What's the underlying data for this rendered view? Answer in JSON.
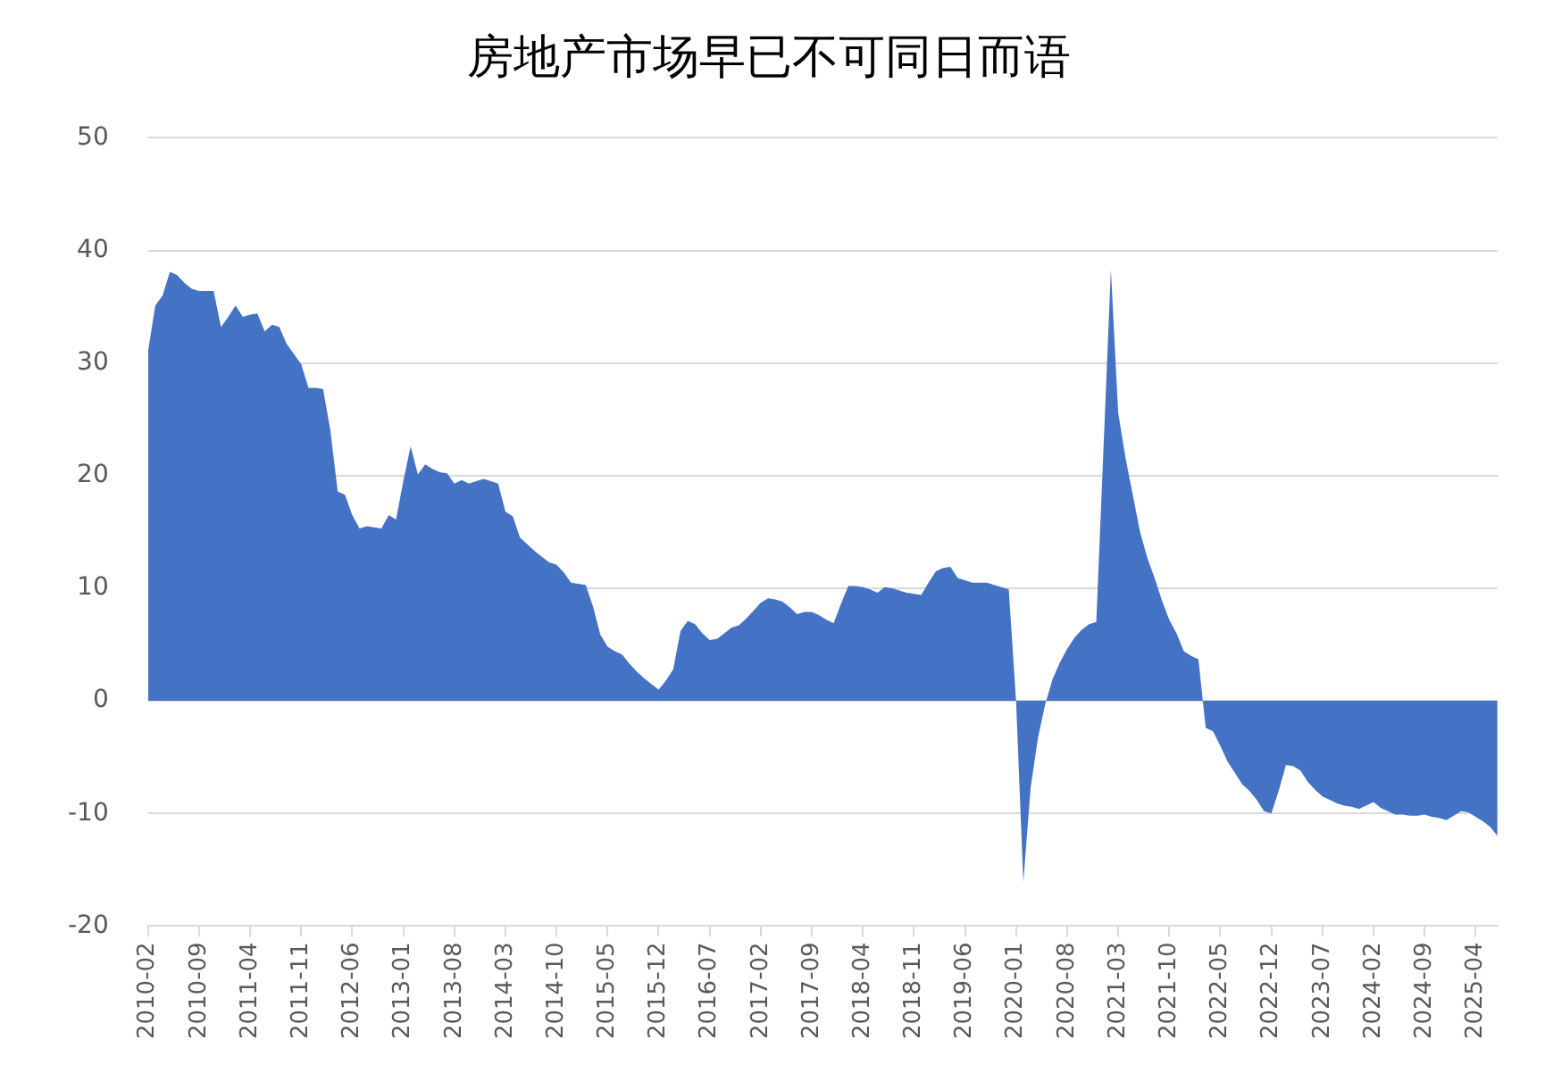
{
  "chart_data": {
    "type": "area",
    "title": "房地产市场早已不可同日而语",
    "categories": [
      "2010-02",
      null,
      null,
      null,
      null,
      null,
      null,
      "2010-09",
      null,
      null,
      null,
      null,
      null,
      null,
      "2011-04",
      null,
      null,
      null,
      null,
      null,
      null,
      "2011-11",
      null,
      null,
      null,
      null,
      null,
      null,
      "2012-06",
      null,
      null,
      null,
      null,
      null,
      null,
      "2013-01",
      null,
      null,
      null,
      null,
      null,
      null,
      "2013-08",
      null,
      null,
      null,
      null,
      null,
      null,
      "2014-03",
      null,
      null,
      null,
      null,
      null,
      null,
      "2014-10",
      null,
      null,
      null,
      null,
      null,
      null,
      "2015-05",
      null,
      null,
      null,
      null,
      null,
      null,
      "2015-12",
      null,
      null,
      null,
      null,
      null,
      null,
      "2016-07",
      null,
      null,
      null,
      null,
      null,
      null,
      "2017-02",
      null,
      null,
      null,
      null,
      null,
      null,
      "2017-09",
      null,
      null,
      null,
      null,
      null,
      null,
      "2018-04",
      null,
      null,
      null,
      null,
      null,
      null,
      "2018-11",
      null,
      null,
      null,
      null,
      null,
      null,
      "2019-06",
      null,
      null,
      null,
      null,
      null,
      null,
      "2020-01",
      null,
      null,
      null,
      null,
      null,
      null,
      "2020-08",
      null,
      null,
      null,
      null,
      null,
      null,
      "2021-03",
      null,
      null,
      null,
      null,
      null,
      null,
      "2021-10",
      null,
      null,
      null,
      null,
      null,
      null,
      "2022-05",
      null,
      null,
      null,
      null,
      null,
      null,
      "2022-12",
      null,
      null,
      null,
      null,
      null,
      null,
      "2023-07",
      null,
      null,
      null,
      null,
      null,
      null,
      "2024-02",
      null,
      null,
      null,
      null,
      null,
      null,
      "2024-09",
      null,
      null,
      null,
      null,
      null,
      null,
      "2025-04",
      null,
      null,
      null
    ],
    "values": [
      31.0,
      35.1,
      36.0,
      38.1,
      37.8,
      37.1,
      36.6,
      36.4,
      36.4,
      36.4,
      33.2,
      34.1,
      35.1,
      34.1,
      34.3,
      34.4,
      32.8,
      33.4,
      33.2,
      31.7,
      30.8,
      29.9,
      27.8,
      27.8,
      27.7,
      24.0,
      18.6,
      18.3,
      16.5,
      15.3,
      15.5,
      15.4,
      15.3,
      16.5,
      16.1,
      19.5,
      22.6,
      20.1,
      21.0,
      20.6,
      20.3,
      20.2,
      19.3,
      19.6,
      19.3,
      19.5,
      19.7,
      19.5,
      19.3,
      16.8,
      16.4,
      14.5,
      13.9,
      13.3,
      12.8,
      12.3,
      12.1,
      11.4,
      10.5,
      10.4,
      10.3,
      8.4,
      5.9,
      4.8,
      4.4,
      4.1,
      3.3,
      2.6,
      2.0,
      1.5,
      1.0,
      1.8,
      2.8,
      6.2,
      7.1,
      6.8,
      6.0,
      5.4,
      5.5,
      6.0,
      6.5,
      6.7,
      7.3,
      8.0,
      8.7,
      9.1,
      9.0,
      8.8,
      8.3,
      7.7,
      7.9,
      7.9,
      7.6,
      7.2,
      6.9,
      8.6,
      10.2,
      10.2,
      10.1,
      9.9,
      9.6,
      10.1,
      10.0,
      9.8,
      9.6,
      9.5,
      9.4,
      10.5,
      11.5,
      11.8,
      11.9,
      10.9,
      10.7,
      10.5,
      10.5,
      10.5,
      10.3,
      10.1,
      9.9,
      0,
      -16.1,
      -7.7,
      -3.3,
      -0.3,
      1.9,
      3.4,
      4.6,
      5.6,
      6.3,
      6.8,
      7.0,
      22.6,
      38.3,
      25.6,
      21.6,
      18.3,
      15.0,
      12.7,
      10.9,
      8.9,
      7.2,
      6.0,
      4.4,
      4.0,
      3.7,
      -2.4,
      -2.7,
      -4.0,
      -5.4,
      -6.4,
      -7.4,
      -8.0,
      -8.8,
      -9.8,
      -10.0,
      -8.0,
      -5.7,
      -5.8,
      -6.2,
      -7.2,
      -7.9,
      -8.5,
      -8.8,
      -9.1,
      -9.3,
      -9.4,
      -9.6,
      -9.3,
      -9.0,
      -9.5,
      -9.8,
      -10.1,
      -10.1,
      -10.2,
      -10.2,
      -10.1,
      -10.3,
      -10.4,
      -10.6,
      -10.2,
      -9.8,
      -9.9,
      -10.3,
      -10.7,
      -11.2,
      -12.0
    ],
    "color": "#4472c4",
    "ylim": [
      -20,
      50
    ],
    "yticks": [
      -20,
      -10,
      0,
      10,
      20,
      30,
      40,
      50
    ],
    "grid": "y"
  }
}
